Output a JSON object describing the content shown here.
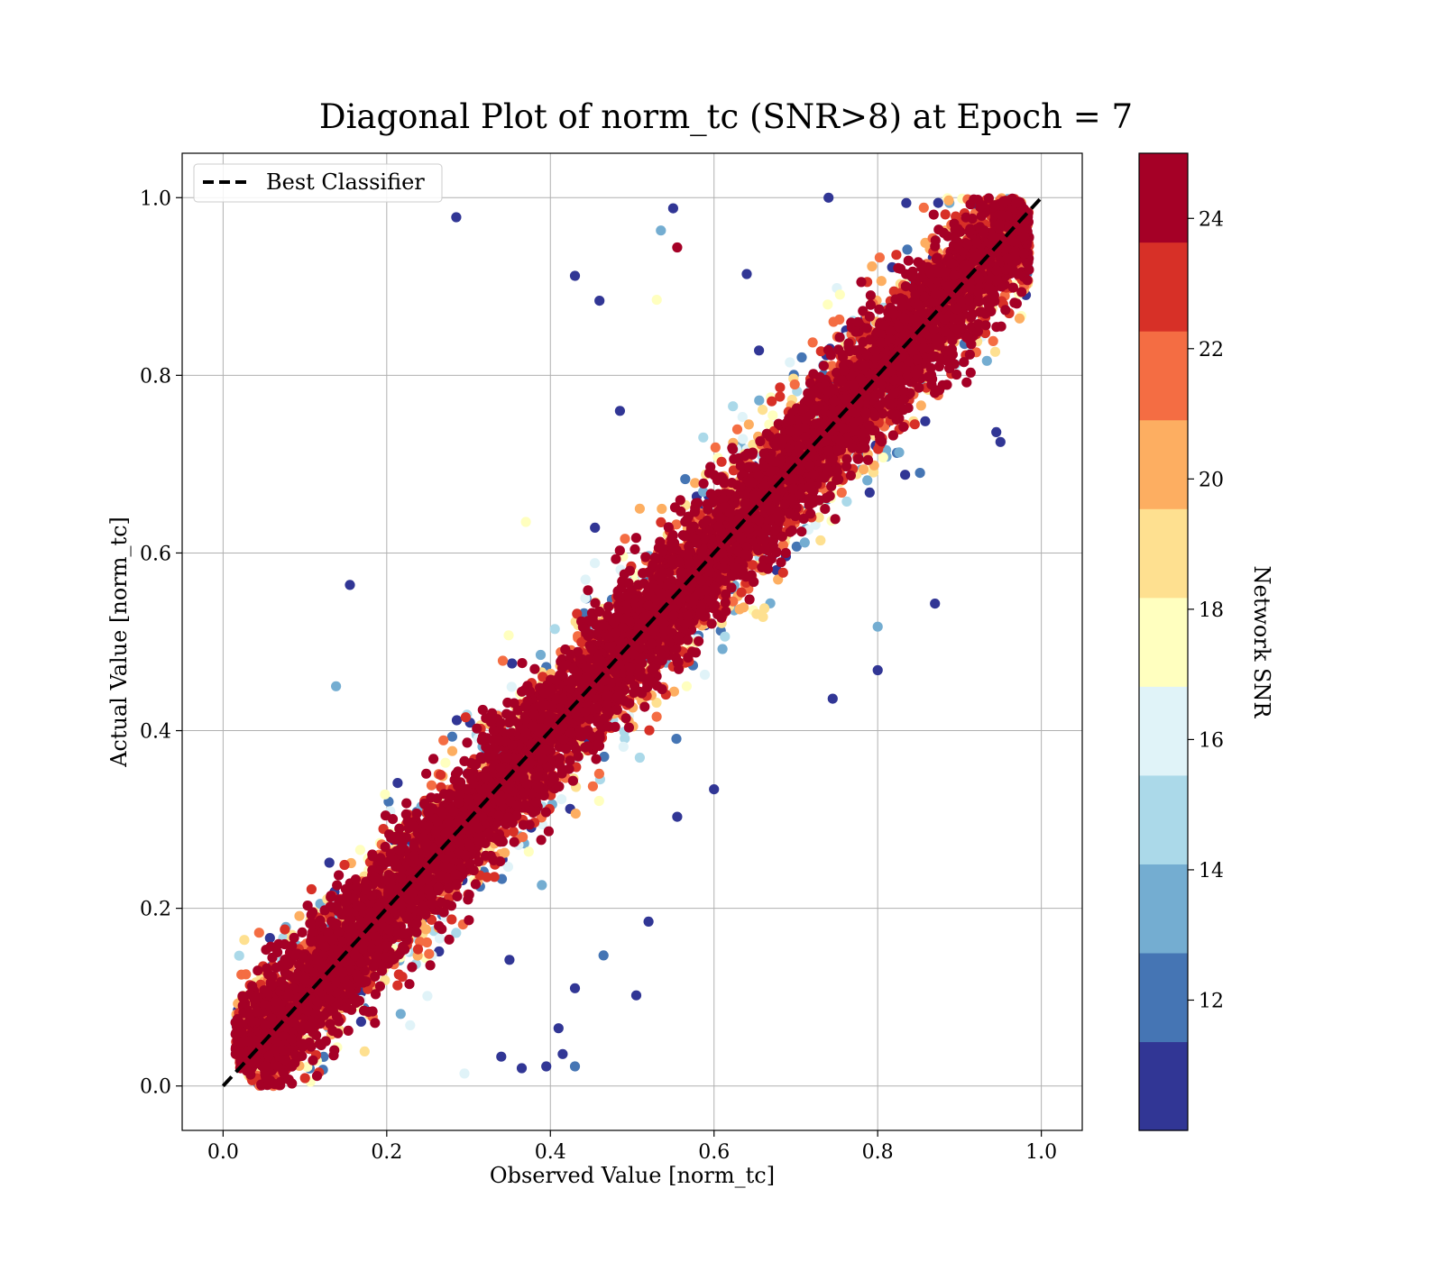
{
  "chart_data": {
    "type": "scatter",
    "title": "Diagonal Plot of norm_tc (SNR>8) at Epoch = 7",
    "xlabel": "Observed Value [norm_tc]",
    "ylabel": "Actual Value [norm_tc]",
    "xlim": [
      -0.05,
      1.05
    ],
    "ylim": [
      -0.05,
      1.05
    ],
    "xticks": [
      "0.0",
      "0.2",
      "0.4",
      "0.6",
      "0.8",
      "1.0"
    ],
    "yticks": [
      "0.0",
      "0.2",
      "0.4",
      "0.6",
      "0.8",
      "1.0"
    ],
    "grid": true,
    "legend": {
      "position": "top-left",
      "entries": [
        "Best Classifier"
      ]
    },
    "reference_line": {
      "name": "Best Classifier",
      "x": [
        0,
        1
      ],
      "y": [
        0,
        1
      ],
      "style": "dashed",
      "color": "#000000"
    },
    "colorbar": {
      "label": "Network SNR",
      "range": [
        10,
        25
      ],
      "ticks": [
        "12",
        "14",
        "16",
        "18",
        "20",
        "22",
        "24"
      ],
      "colors": [
        "#313695",
        "#4575b4",
        "#74add1",
        "#abd9e9",
        "#e0f3f8",
        "#ffffbf",
        "#fee090",
        "#fdae61",
        "#f46d43",
        "#d73027",
        "#a50026"
      ]
    },
    "series": [
      {
        "description_free": true,
        "band": {
          "spread_low_snr": 0.09,
          "spread_high_snr": 0.045
        },
        "outliers": [
          {
            "x": 0.285,
            "y": 0.978,
            "snr": 11
          },
          {
            "x": 0.43,
            "y": 0.912,
            "snr": 11
          },
          {
            "x": 0.46,
            "y": 0.884,
            "snr": 11
          },
          {
            "x": 0.555,
            "y": 0.944,
            "snr": 24
          },
          {
            "x": 0.55,
            "y": 0.988,
            "snr": 11
          },
          {
            "x": 0.535,
            "y": 0.963,
            "snr": 13
          },
          {
            "x": 0.64,
            "y": 0.914,
            "snr": 11
          },
          {
            "x": 0.485,
            "y": 0.76,
            "snr": 11
          },
          {
            "x": 0.155,
            "y": 0.564,
            "snr": 11
          },
          {
            "x": 0.138,
            "y": 0.45,
            "snr": 14
          },
          {
            "x": 0.37,
            "y": 0.635,
            "snr": 17
          },
          {
            "x": 0.53,
            "y": 0.885,
            "snr": 17
          },
          {
            "x": 0.6,
            "y": 0.334,
            "snr": 11
          },
          {
            "x": 0.555,
            "y": 0.303,
            "snr": 11
          },
          {
            "x": 0.52,
            "y": 0.185,
            "snr": 11
          },
          {
            "x": 0.505,
            "y": 0.102,
            "snr": 11
          },
          {
            "x": 0.465,
            "y": 0.147,
            "snr": 12
          },
          {
            "x": 0.43,
            "y": 0.11,
            "snr": 11
          },
          {
            "x": 0.41,
            "y": 0.065,
            "snr": 11
          },
          {
            "x": 0.415,
            "y": 0.036,
            "snr": 11
          },
          {
            "x": 0.43,
            "y": 0.022,
            "snr": 12
          },
          {
            "x": 0.395,
            "y": 0.022,
            "snr": 11
          },
          {
            "x": 0.365,
            "y": 0.02,
            "snr": 11
          },
          {
            "x": 0.34,
            "y": 0.033,
            "snr": 11
          },
          {
            "x": 0.295,
            "y": 0.014,
            "snr": 16
          },
          {
            "x": 0.35,
            "y": 0.142,
            "snr": 11
          },
          {
            "x": 0.87,
            "y": 0.543,
            "snr": 11
          },
          {
            "x": 0.8,
            "y": 0.468,
            "snr": 11
          },
          {
            "x": 0.745,
            "y": 0.436,
            "snr": 11
          },
          {
            "x": 0.8,
            "y": 0.517,
            "snr": 13
          },
          {
            "x": 0.95,
            "y": 0.725,
            "snr": 11
          },
          {
            "x": 0.945,
            "y": 0.736,
            "snr": 11
          },
          {
            "x": 0.74,
            "y": 1.0,
            "snr": 11
          },
          {
            "x": 0.835,
            "y": 0.994,
            "snr": 11
          },
          {
            "x": 0.655,
            "y": 0.828,
            "snr": 11
          },
          {
            "x": 0.78,
            "y": 0.905,
            "snr": 24
          }
        ]
      }
    ]
  }
}
